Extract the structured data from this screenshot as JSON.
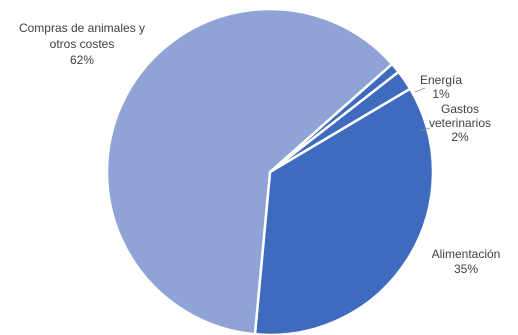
{
  "chart_data": {
    "type": "pie",
    "start_angle_deg": 41.5,
    "direction": "clockwise",
    "colors": {
      "slice_light": "#8fa3d6",
      "slice_dark": "#3f6bbf",
      "border": "#ffffff",
      "label_text": "#404040"
    },
    "slices": [
      {
        "label_lines": [
          "Energía"
        ],
        "value": 1,
        "value_label": "1%"
      },
      {
        "label_lines": [
          "Gastos",
          "veterinarios"
        ],
        "value": 2,
        "value_label": "2%"
      },
      {
        "label_lines": [
          "Alimentación"
        ],
        "value": 35,
        "value_label": "35%"
      },
      {
        "label_lines": [
          "Compras de animales y",
          "otros costes"
        ],
        "value": 62,
        "value_label": "62%"
      }
    ],
    "slice_colors": [
      "#3f6bbf",
      "#3f6bbf",
      "#3f6bbf",
      "#8fa3d6"
    ],
    "legend": "none",
    "data_labels": "outside with category name and percentage"
  }
}
